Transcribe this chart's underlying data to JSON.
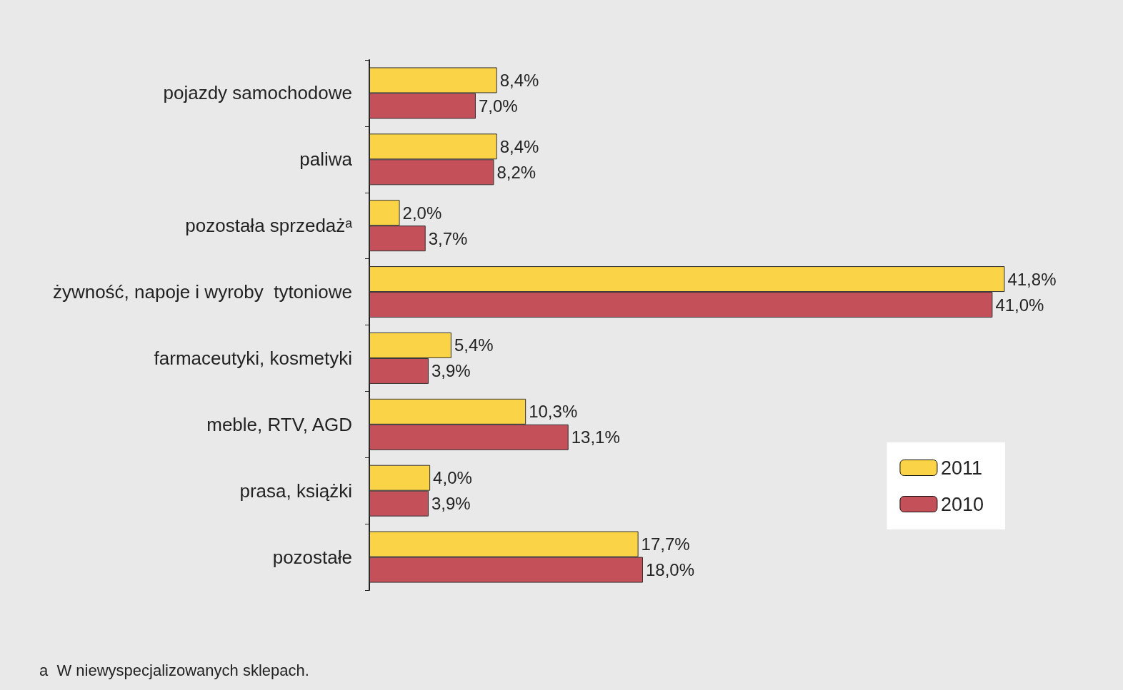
{
  "chart_data": {
    "type": "bar",
    "orientation": "horizontal",
    "categories": [
      "pojazdy samochodowe",
      "paliwa",
      "pozostała sprzedażᵃ",
      "żywność, napoje i wyroby  tytoniowe",
      "farmaceutyki, kosmetyki",
      "meble, RTV, AGD",
      "prasa, książki",
      "pozostałe"
    ],
    "series": [
      {
        "name": "2011",
        "color": "#fbd346",
        "values": [
          8.4,
          8.4,
          2.0,
          41.8,
          5.4,
          10.3,
          4.0,
          17.7
        ],
        "value_labels": [
          "8,4%",
          "8,4%",
          "2,0%",
          "41,8%",
          "5,4%",
          "10,3%",
          "4,0%",
          "17,7%"
        ]
      },
      {
        "name": "2010",
        "color": "#c4505a",
        "values": [
          7.0,
          8.2,
          3.7,
          41.0,
          3.9,
          13.1,
          3.9,
          18.0
        ],
        "value_labels": [
          "7,0%",
          "8,2%",
          "3,7%",
          "41,0%",
          "3,9%",
          "13,1%",
          "3,9%",
          "18,0%"
        ]
      }
    ],
    "legend": "right",
    "annotations": [
      "a  W niewyspecjalizowanych sklepach."
    ]
  }
}
